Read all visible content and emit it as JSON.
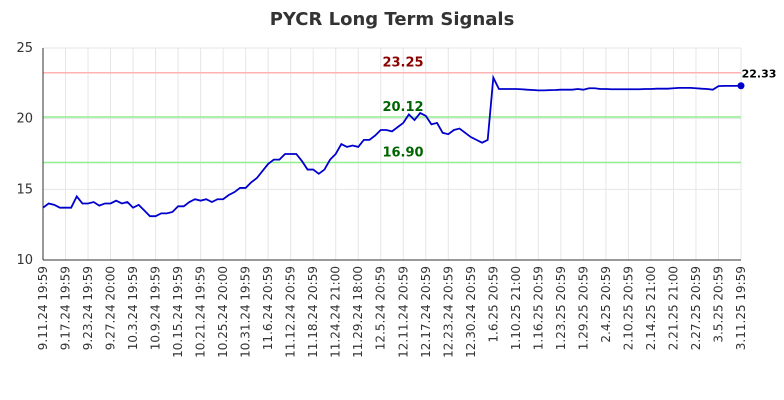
{
  "chart_data": {
    "type": "line",
    "title": "PYCR Long Term Signals",
    "categories": [
      "9.11.24 19:59",
      null,
      null,
      null,
      "9.17.24 19:59",
      null,
      null,
      null,
      "9.23.24 19:59",
      null,
      null,
      null,
      "9.27.24 20:00",
      null,
      null,
      null,
      "10.3.24 19:59",
      null,
      null,
      null,
      "10.9.24 19:59",
      null,
      null,
      null,
      "10.15.24 19:59",
      null,
      null,
      null,
      "10.21.24 19:59",
      null,
      null,
      null,
      "10.25.24 20:00",
      null,
      null,
      null,
      "10.31.24 19:59",
      null,
      null,
      null,
      "11.6.24 20:59",
      null,
      null,
      null,
      "11.12.24 20:59",
      null,
      null,
      null,
      "11.18.24 20:59",
      null,
      null,
      null,
      "11.24.24 21:00",
      null,
      null,
      null,
      "11.29.24 18:00",
      null,
      null,
      null,
      "12.5.24 20:59",
      null,
      null,
      null,
      "12.11.24 20:59",
      null,
      null,
      null,
      "12.17.24 20:59",
      null,
      null,
      null,
      "12.23.24 20:59",
      null,
      null,
      null,
      "12.30.24 20:59",
      null,
      null,
      null,
      "1.6.25 20:59",
      null,
      null,
      null,
      "1.10.25 21:00",
      null,
      null,
      null,
      "1.16.25 20:59",
      null,
      null,
      null,
      "1.23.25 20:59",
      null,
      null,
      null,
      "1.29.25 20:59",
      null,
      null,
      null,
      "2.4.25 20:59",
      null,
      null,
      null,
      "2.10.25 20:59",
      null,
      null,
      null,
      "2.14.25 21:00",
      null,
      null,
      null,
      "2.21.25 21:00",
      null,
      null,
      null,
      "2.27.25 20:59",
      null,
      null,
      null,
      "3.5.25 20:59",
      null,
      null,
      null,
      "3.11.25 19:59"
    ],
    "series": [
      {
        "color": "#0000cc",
        "values": [
          13.7,
          14.0,
          13.9,
          13.7,
          13.7,
          13.7,
          14.5,
          14.0,
          14.0,
          14.1,
          13.85,
          14.0,
          14.0,
          14.2,
          14.0,
          14.1,
          13.7,
          13.9,
          13.5,
          13.1,
          13.1,
          13.3,
          13.3,
          13.4,
          13.8,
          13.8,
          14.1,
          14.3,
          14.2,
          14.3,
          14.1,
          14.3,
          14.3,
          14.6,
          14.8,
          15.1,
          15.1,
          15.5,
          15.8,
          16.3,
          16.8,
          17.1,
          17.1,
          17.5,
          17.5,
          17.5,
          17.0,
          16.4,
          16.4,
          16.1,
          16.4,
          17.1,
          17.5,
          18.2,
          18.0,
          18.1,
          18.0,
          18.5,
          18.5,
          18.8,
          19.2,
          19.2,
          19.1,
          19.4,
          19.7,
          20.3,
          19.9,
          20.4,
          20.2,
          19.6,
          19.7,
          19.0,
          18.9,
          19.2,
          19.3,
          19.0,
          18.7,
          18.5,
          18.3,
          18.5,
          22.9,
          22.1,
          22.1,
          22.1,
          22.1,
          22.08,
          22.05,
          22.03,
          22.0,
          22.0,
          22.02,
          22.03,
          22.05,
          22.05,
          22.05,
          22.1,
          22.05,
          22.15,
          22.15,
          22.1,
          22.1,
          22.08,
          22.08,
          22.08,
          22.08,
          22.08,
          22.08,
          22.1,
          22.1,
          22.12,
          22.12,
          22.12,
          22.15,
          22.18,
          22.18,
          22.18,
          22.15,
          22.12,
          22.1,
          22.05,
          22.3,
          22.32,
          22.32,
          22.32,
          22.33
        ]
      }
    ],
    "reference_lines": [
      {
        "value": 23.25,
        "color": "#ffb3b3",
        "label_color": "#8b0000"
      },
      {
        "value": 20.12,
        "color": "#90ee90",
        "label_color": "#006400"
      },
      {
        "value": 16.9,
        "label": "16.90",
        "color": "#90ee90",
        "label_color": "#006400"
      }
    ],
    "ylim": [
      10,
      25
    ],
    "yticks": [
      10,
      15,
      20,
      25
    ],
    "grid": true
  }
}
